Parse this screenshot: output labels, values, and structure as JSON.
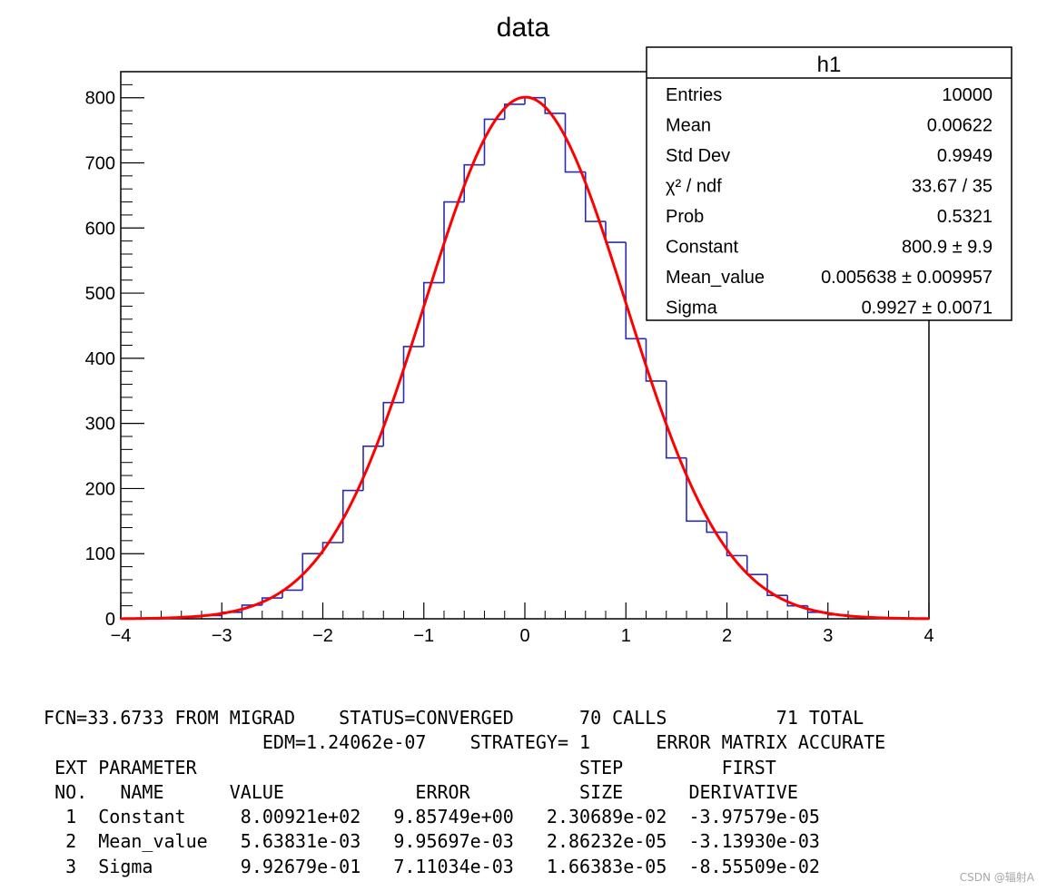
{
  "chart_data": {
    "type": "histogram",
    "title": "data",
    "xlim": [
      -4,
      4
    ],
    "ylim": [
      0,
      840
    ],
    "x_ticks": [
      "−4",
      "−3",
      "−2",
      "−1",
      "0",
      "1",
      "2",
      "3",
      "4"
    ],
    "y_ticks": [
      "0",
      "100",
      "200",
      "300",
      "400",
      "500",
      "600",
      "700",
      "800"
    ],
    "bin_edges": [
      -4.0,
      -3.8,
      -3.6,
      -3.4,
      -3.2,
      -3.0,
      -2.8,
      -2.6,
      -2.4,
      -2.2,
      -2.0,
      -1.8,
      -1.6,
      -1.4,
      -1.2,
      -1.0,
      -0.8,
      -0.6,
      -0.4,
      -0.2,
      0.0,
      0.2,
      0.4,
      0.6,
      0.8,
      1.0,
      1.2,
      1.4,
      1.6,
      1.8,
      2.0,
      2.2,
      2.4,
      2.6,
      2.8,
      3.0,
      3.2,
      3.4,
      3.6,
      3.8,
      4.0
    ],
    "bin_values": [
      0,
      0,
      1,
      3,
      5,
      10,
      21,
      32,
      44,
      100,
      117,
      197,
      265,
      332,
      418,
      516,
      640,
      697,
      767,
      790,
      800,
      776,
      686,
      610,
      578,
      430,
      365,
      247,
      150,
      133,
      97,
      68,
      36,
      20,
      10,
      6,
      3,
      1,
      1,
      0
    ],
    "histogram_color": "#2b2bb0",
    "fit": {
      "function": "gaus",
      "constant": 800.9,
      "mean": 0.005638,
      "sigma": 0.9927,
      "color": "#ff0000"
    },
    "stats_box": {
      "title": "h1",
      "rows": [
        {
          "label": "Entries",
          "value": "10000"
        },
        {
          "label": "Mean",
          "value": "0.00622"
        },
        {
          "label": "Std Dev",
          "value": "0.9949"
        },
        {
          "label": "χ² / ndf",
          "value": "33.67 / 35"
        },
        {
          "label": "Prob",
          "value": "0.5321"
        },
        {
          "label": "Constant",
          "value": "800.9 ± 9.9"
        },
        {
          "label": "Mean_value",
          "value": "0.005638 ± 0.009957"
        },
        {
          "label": "Sigma",
          "value": "0.9927 ± 0.0071"
        }
      ]
    }
  },
  "fit_output": [
    " FCN=33.6733 FROM MIGRAD    STATUS=CONVERGED      70 CALLS          71 TOTAL",
    "                     EDM=1.24062e-07    STRATEGY= 1      ERROR MATRIX ACCURATE",
    "  EXT PARAMETER                                   STEP         FIRST",
    "  NO.   NAME      VALUE            ERROR          SIZE      DERIVATIVE",
    "   1  Constant     8.00921e+02   9.85749e+00   2.30689e-02  -3.97579e-05",
    "   2  Mean_value   5.63831e-03   9.95697e-03   2.86232e-05  -3.13930e-03",
    "   3  Sigma        9.92679e-01   7.11034e-03   1.66383e-05  -8.55509e-02"
  ],
  "watermark": "CSDN @辐射A"
}
